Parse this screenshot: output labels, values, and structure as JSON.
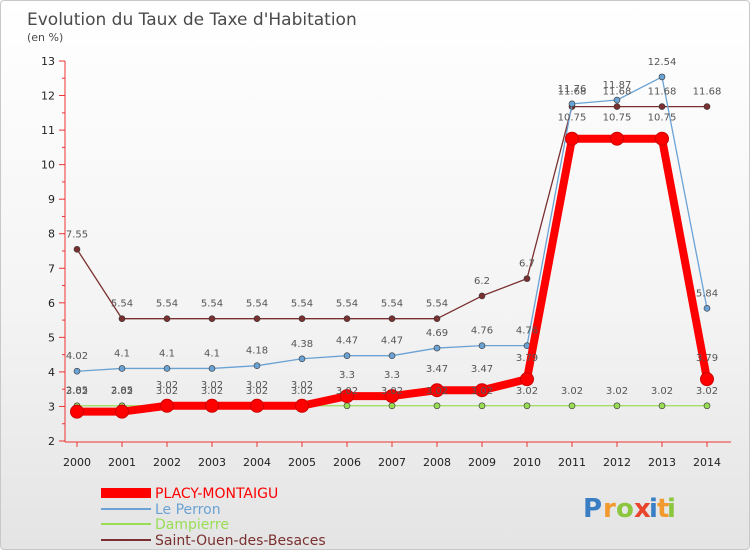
{
  "chart_data": {
    "type": "line",
    "title": "Evolution du Taux de Taxe d'Habitation",
    "subtitle": "(en %)",
    "xlabel": "",
    "ylabel": "",
    "ylim": [
      2,
      13
    ],
    "yticks": [
      2,
      3,
      4,
      5,
      6,
      7,
      8,
      9,
      10,
      11,
      12,
      13
    ],
    "grid": false,
    "legend_position": "bottom-left",
    "x": [
      "2000",
      "2001",
      "2002",
      "2003",
      "2004",
      "2005",
      "2006",
      "2007",
      "2008",
      "2009",
      "2010",
      "2011",
      "2012",
      "2013",
      "2014"
    ],
    "series": [
      {
        "name": "PLACY-MONTAIGU",
        "color": "#ff0000",
        "values": [
          2.85,
          2.85,
          3.02,
          3.02,
          3.02,
          3.02,
          3.3,
          3.3,
          3.47,
          3.47,
          3.79,
          10.75,
          10.75,
          10.75,
          3.79
        ],
        "labels": [
          "2.85",
          "2.85",
          "3.02",
          "3.02",
          "3.02",
          "3.02",
          "3.3",
          "3.3",
          "3.47",
          "3.47",
          "3.79",
          "10.75",
          "10.75",
          "10.75",
          "3.79"
        ]
      },
      {
        "name": "Le Perron",
        "color": "#6aa2d4",
        "values": [
          4.02,
          4.1,
          4.1,
          4.1,
          4.18,
          4.38,
          4.47,
          4.47,
          4.69,
          4.76,
          4.76,
          11.76,
          11.87,
          12.54,
          5.84
        ],
        "labels": [
          "4.02",
          "4.1",
          "4.1",
          "4.1",
          "4.18",
          "4.38",
          "4.47",
          "4.47",
          "4.69",
          "4.76",
          "4.76",
          "11.76",
          "11.87",
          "12.54",
          "5.84"
        ]
      },
      {
        "name": "Dampierre",
        "color": "#99dd55",
        "values": [
          3.02,
          3.02,
          3.02,
          3.02,
          3.02,
          3.02,
          3.02,
          3.02,
          3.02,
          3.02,
          3.02,
          3.02,
          3.02,
          3.02,
          3.02
        ],
        "labels": [
          "3.02",
          "3.02",
          "3.02",
          "3.02",
          "3.02",
          "3.02",
          "3.02",
          "3.02",
          "3.02",
          "3.02",
          "3.02",
          "3.02",
          "3.02",
          "3.02",
          "3.02"
        ]
      },
      {
        "name": "Saint-Ouen-des-Besaces",
        "color": "#7a3030",
        "values": [
          7.55,
          5.54,
          5.54,
          5.54,
          5.54,
          5.54,
          5.54,
          5.54,
          5.54,
          6.2,
          6.7,
          11.68,
          11.68,
          11.68,
          11.68
        ],
        "labels": [
          "7.55",
          "5.54",
          "5.54",
          "5.54",
          "5.54",
          "5.54",
          "5.54",
          "5.54",
          "5.54",
          "6.2",
          "6.7",
          "11.68",
          "11.68",
          "11.68",
          "11.68"
        ]
      }
    ]
  },
  "brand": {
    "letters": [
      "P",
      "r",
      "o",
      "x",
      "i",
      "t",
      "i"
    ],
    "colors": [
      "#3a7fc4",
      "#f29a2e",
      "#8cc63f",
      "#e8452c",
      "#3a7fc4",
      "#f29a2e",
      "#8cc63f"
    ]
  }
}
